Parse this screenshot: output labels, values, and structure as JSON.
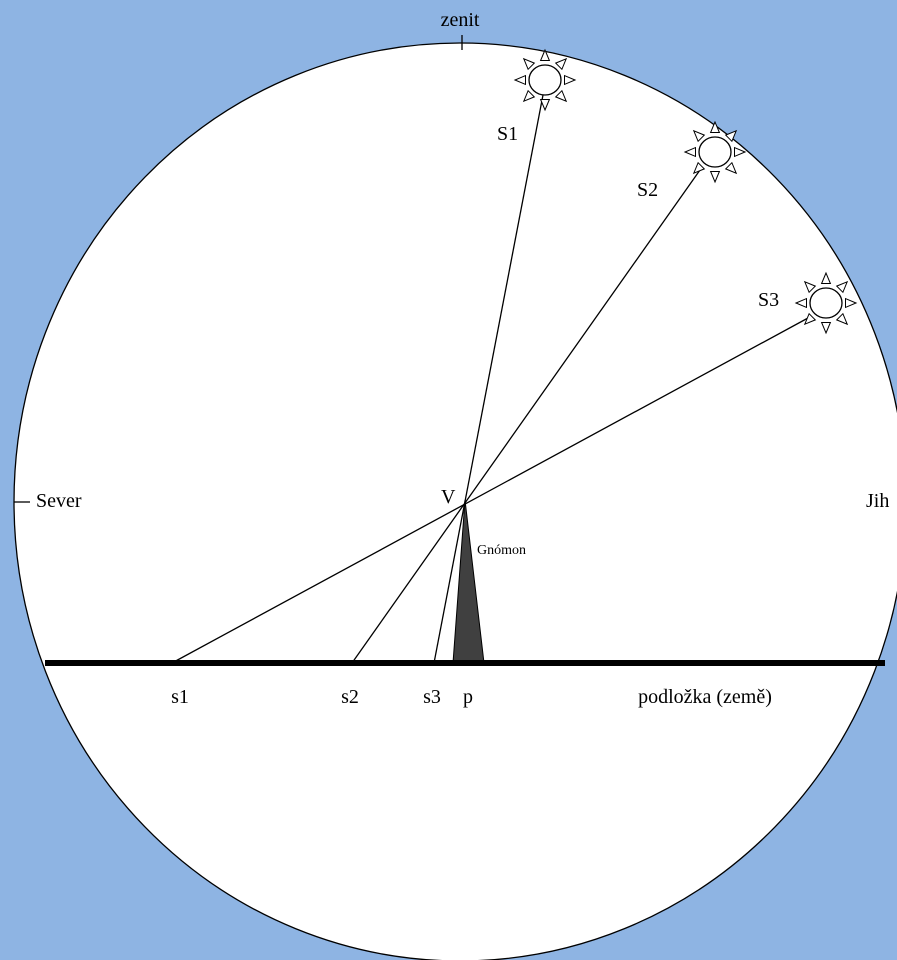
{
  "labels": {
    "zenith": "zenit",
    "north": "Sever",
    "south": "Jih",
    "vertex": "V",
    "gnomon": "Gnómon",
    "suns": [
      "S1",
      "S2",
      "S3"
    ],
    "shadows": [
      "s1",
      "s2",
      "s3"
    ],
    "foot": "p",
    "ground": "podložka (země)"
  }
}
